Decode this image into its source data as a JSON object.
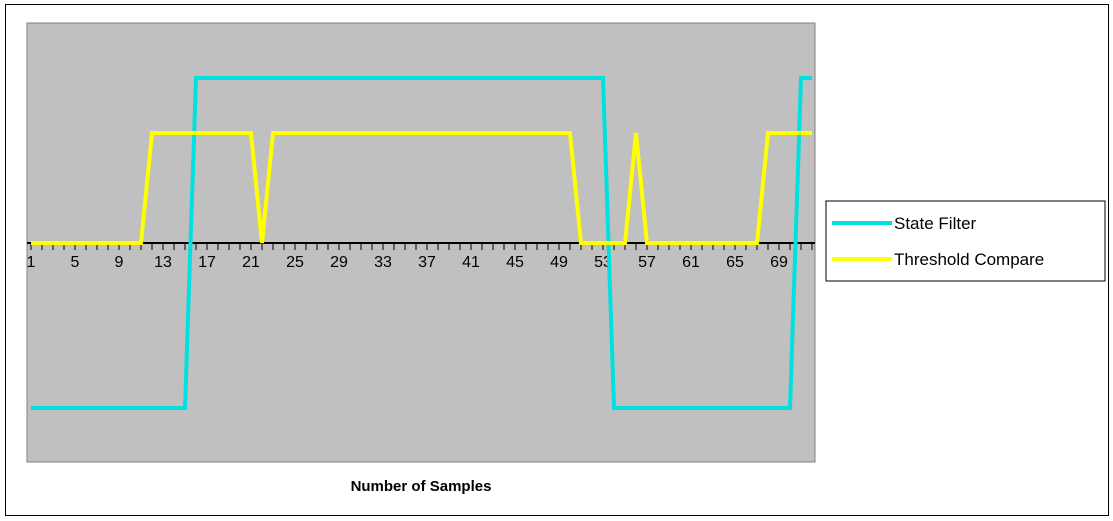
{
  "chart_data": {
    "type": "line",
    "title": "",
    "xlabel": "Number of Samples",
    "ylabel": "",
    "x": [
      1,
      2,
      3,
      4,
      5,
      6,
      7,
      8,
      9,
      10,
      11,
      12,
      13,
      14,
      15,
      16,
      17,
      18,
      19,
      20,
      21,
      22,
      23,
      24,
      25,
      26,
      27,
      28,
      29,
      30,
      31,
      32,
      33,
      34,
      35,
      36,
      37,
      38,
      39,
      40,
      41,
      42,
      43,
      44,
      45,
      46,
      47,
      48,
      49,
      50,
      51,
      52,
      53,
      54,
      55,
      56,
      57,
      58,
      59,
      60,
      61,
      62,
      63,
      64,
      65,
      66,
      67,
      68,
      69,
      70,
      71,
      72
    ],
    "x_tick_labels": [
      "1",
      "5",
      "9",
      "13",
      "17",
      "21",
      "25",
      "29",
      "33",
      "37",
      "41",
      "45",
      "49",
      "53",
      "57",
      "61",
      "65",
      "69"
    ],
    "ylim": [
      -1.5,
      1.5
    ],
    "grid": false,
    "legend_position": "right",
    "plot_background": "#c0c0c0",
    "series": [
      {
        "name": "State Filter",
        "color": "#00e0e0",
        "values": [
          -1.5,
          -1.5,
          -1.5,
          -1.5,
          -1.5,
          -1.5,
          -1.5,
          -1.5,
          -1.5,
          -1.5,
          -1.5,
          -1.5,
          -1.5,
          -1.5,
          -1.5,
          1.5,
          1.5,
          1.5,
          1.5,
          1.5,
          1.5,
          1.5,
          1.5,
          1.5,
          1.5,
          1.5,
          1.5,
          1.5,
          1.5,
          1.5,
          1.5,
          1.5,
          1.5,
          1.5,
          1.5,
          1.5,
          1.5,
          1.5,
          1.5,
          1.5,
          1.5,
          1.5,
          1.5,
          1.5,
          1.5,
          1.5,
          1.5,
          1.5,
          1.5,
          1.5,
          1.5,
          1.5,
          1.5,
          -1.5,
          -1.5,
          -1.5,
          -1.5,
          -1.5,
          -1.5,
          -1.5,
          -1.5,
          -1.5,
          -1.5,
          -1.5,
          -1.5,
          -1.5,
          -1.5,
          -1.5,
          -1.5,
          -1.5,
          1.5,
          1.5
        ]
      },
      {
        "name": "Threshold Compare",
        "color": "#ffff00",
        "values": [
          0,
          0,
          0,
          0,
          0,
          0,
          0,
          0,
          0,
          0,
          0,
          1,
          1,
          1,
          1,
          1,
          1,
          1,
          1,
          1,
          1,
          0,
          1,
          1,
          1,
          1,
          1,
          1,
          1,
          1,
          1,
          1,
          1,
          1,
          1,
          1,
          1,
          1,
          1,
          1,
          1,
          1,
          1,
          1,
          1,
          1,
          1,
          1,
          1,
          1,
          0,
          0,
          0,
          0,
          0,
          1,
          0,
          0,
          0,
          0,
          0,
          0,
          0,
          0,
          0,
          0,
          0,
          1,
          1,
          1,
          1,
          1
        ]
      }
    ]
  }
}
